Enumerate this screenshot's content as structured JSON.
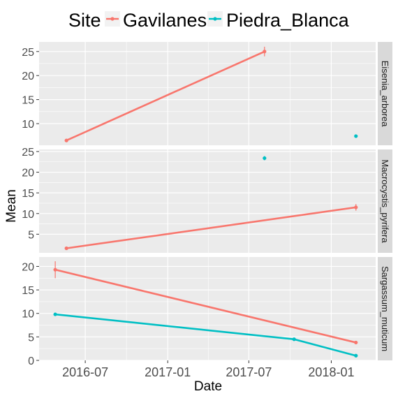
{
  "chart_data": {
    "type": "line",
    "xlabel": "Date",
    "ylabel": "Mean",
    "x_ticks": [
      "2016-07",
      "2017-01",
      "2017-07",
      "2018-01"
    ],
    "x_range": [
      "2016-03-20",
      "2018-04-10"
    ],
    "legend": {
      "title": "Site",
      "placement": "top",
      "entries": [
        {
          "name": "Gavilanes",
          "color": "#F8766D"
        },
        {
          "name": "Piedra_Blanca",
          "color": "#00BFC4"
        }
      ]
    },
    "grid": true,
    "panels": [
      {
        "strip": "Eisenia_arborea",
        "ylim": [
          5.5,
          27
        ],
        "y_ticks": [
          10,
          15,
          20,
          25
        ],
        "series": [
          {
            "name": "Gavilanes",
            "points": [
              {
                "x": "2016-05-20",
                "y": 6.5,
                "err": 0
              },
              {
                "x": "2017-08-05",
                "y": 25.0,
                "err": 1.0
              }
            ]
          },
          {
            "name": "Piedra_Blanca",
            "points": [
              {
                "x": "2018-02-25",
                "y": 7.4,
                "err": 0
              }
            ]
          }
        ]
      },
      {
        "strip": "Macrocystis_pyrifera",
        "ylim": [
          0.5,
          25.5
        ],
        "y_ticks": [
          5,
          10,
          15,
          20,
          25
        ],
        "series": [
          {
            "name": "Gavilanes",
            "points": [
              {
                "x": "2016-05-20",
                "y": 1.6,
                "err": 0
              },
              {
                "x": "2018-02-25",
                "y": 11.5,
                "err": 0.8
              }
            ]
          },
          {
            "name": "Piedra_Blanca",
            "points": [
              {
                "x": "2017-08-05",
                "y": 23.4,
                "err": 0.5
              }
            ]
          }
        ]
      },
      {
        "strip": "Sargassum_muticum",
        "ylim": [
          0,
          22
        ],
        "y_ticks": [
          0,
          5,
          10,
          15,
          20
        ],
        "series": [
          {
            "name": "Gavilanes",
            "points": [
              {
                "x": "2016-04-25",
                "y": 19.3,
                "err": 1.8
              },
              {
                "x": "2018-02-25",
                "y": 3.8,
                "err": 0
              }
            ]
          },
          {
            "name": "Piedra_Blanca",
            "points": [
              {
                "x": "2016-04-25",
                "y": 9.8,
                "err": 0
              },
              {
                "x": "2017-10-10",
                "y": 4.5,
                "err": 0
              },
              {
                "x": "2018-02-25",
                "y": 1.0,
                "err": 0
              }
            ]
          }
        ]
      }
    ]
  }
}
